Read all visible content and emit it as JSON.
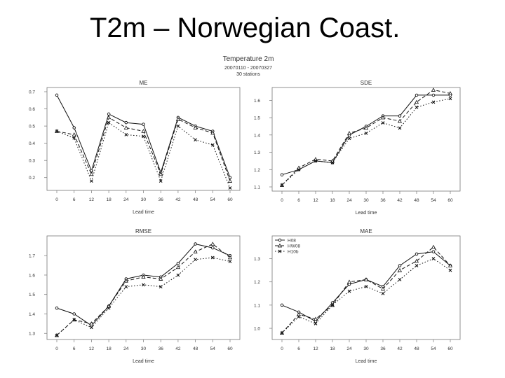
{
  "slide": {
    "title": "T2m – Norwegian Coast."
  },
  "figure": {
    "title": "Temperature 2m",
    "period": "20070110 - 20070327",
    "stations": "30 stations"
  },
  "chart_data": [
    {
      "type": "line",
      "title": "ME",
      "xlabel": "Lead time",
      "ylabel": "",
      "x": [
        0,
        6,
        12,
        18,
        24,
        30,
        36,
        42,
        48,
        54,
        60
      ],
      "ylim": [
        0.15,
        0.7
      ],
      "yticks": [
        0.2,
        0.3,
        0.4,
        0.5,
        0.6,
        0.7
      ],
      "yticklabels": [
        "0.2",
        "0.3",
        "0.4",
        "0.5",
        "0.6",
        "0.7"
      ],
      "series": [
        {
          "name": "H08",
          "values": [
            0.68,
            0.49,
            0.24,
            0.57,
            0.52,
            0.51,
            0.23,
            0.55,
            0.5,
            0.47,
            0.2
          ]
        },
        {
          "name": "HW08",
          "values": [
            0.47,
            0.45,
            0.22,
            0.55,
            0.49,
            0.47,
            0.22,
            0.54,
            0.49,
            0.46,
            0.18
          ]
        },
        {
          "name": "H10b",
          "values": [
            0.47,
            0.43,
            0.18,
            0.52,
            0.45,
            0.44,
            0.18,
            0.5,
            0.42,
            0.39,
            0.14
          ]
        }
      ]
    },
    {
      "type": "line",
      "title": "SDE",
      "xlabel": "Lead time",
      "ylabel": "",
      "x": [
        0,
        6,
        12,
        18,
        24,
        30,
        36,
        42,
        48,
        54,
        60
      ],
      "ylim": [
        1.1,
        1.65
      ],
      "yticks": [
        1.1,
        1.2,
        1.3,
        1.4,
        1.5,
        1.6
      ],
      "yticklabels": [
        "1.1",
        "1.2",
        "1.3",
        "1.4",
        "1.5",
        "1.6"
      ],
      "series": [
        {
          "name": "H08",
          "values": [
            1.17,
            1.2,
            1.25,
            1.24,
            1.4,
            1.45,
            1.51,
            1.51,
            1.63,
            1.63,
            1.63
          ]
        },
        {
          "name": "HW08",
          "values": [
            1.11,
            1.21,
            1.26,
            1.25,
            1.41,
            1.44,
            1.5,
            1.48,
            1.59,
            1.66,
            1.64
          ]
        },
        {
          "name": "H10b",
          "values": [
            1.11,
            1.2,
            1.25,
            1.24,
            1.38,
            1.41,
            1.47,
            1.44,
            1.56,
            1.59,
            1.61
          ]
        }
      ]
    },
    {
      "type": "line",
      "title": "RMSE",
      "xlabel": "Lead time",
      "ylabel": "",
      "x": [
        0,
        6,
        12,
        18,
        24,
        30,
        36,
        42,
        48,
        54,
        60
      ],
      "ylim": [
        1.29,
        1.78
      ],
      "yticks": [
        1.3,
        1.4,
        1.5,
        1.6,
        1.7
      ],
      "yticklabels": [
        "1.3",
        "1.4",
        "1.5",
        "1.6",
        "1.7"
      ],
      "series": [
        {
          "name": "H08",
          "values": [
            1.43,
            1.4,
            1.34,
            1.44,
            1.58,
            1.6,
            1.59,
            1.66,
            1.76,
            1.74,
            1.7
          ]
        },
        {
          "name": "HW08",
          "values": [
            1.29,
            1.37,
            1.35,
            1.44,
            1.57,
            1.59,
            1.58,
            1.64,
            1.72,
            1.76,
            1.69
          ]
        },
        {
          "name": "H10b",
          "values": [
            1.29,
            1.37,
            1.33,
            1.43,
            1.54,
            1.55,
            1.54,
            1.6,
            1.68,
            1.69,
            1.67
          ]
        }
      ]
    },
    {
      "type": "line",
      "title": "MAE",
      "xlabel": "Lead time",
      "ylabel": "",
      "x": [
        0,
        6,
        12,
        18,
        24,
        30,
        36,
        42,
        48,
        54,
        60
      ],
      "ylim": [
        0.97,
        1.38
      ],
      "yticks": [
        1.0,
        1.1,
        1.2,
        1.3
      ],
      "yticklabels": [
        "1.0",
        "1.1",
        "1.2",
        "1.3"
      ],
      "legend": "top-left",
      "series": [
        {
          "name": "H08",
          "values": [
            1.1,
            1.07,
            1.03,
            1.11,
            1.19,
            1.21,
            1.18,
            1.27,
            1.32,
            1.33,
            1.27
          ]
        },
        {
          "name": "HW08",
          "values": [
            0.98,
            1.06,
            1.04,
            1.1,
            1.2,
            1.21,
            1.17,
            1.25,
            1.29,
            1.35,
            1.27
          ]
        },
        {
          "name": "H10b",
          "values": [
            0.98,
            1.05,
            1.02,
            1.1,
            1.16,
            1.18,
            1.15,
            1.21,
            1.27,
            1.3,
            1.25
          ]
        }
      ]
    }
  ]
}
